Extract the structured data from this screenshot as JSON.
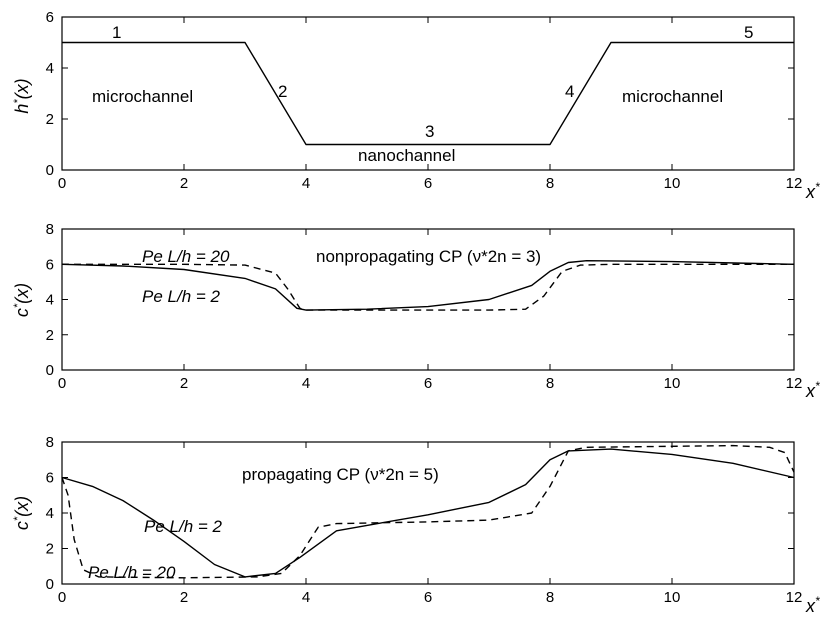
{
  "chart_data": [
    {
      "type": "line",
      "title": "",
      "xlabel": "x*",
      "ylabel": "h*(x)",
      "xlim": [
        0,
        12
      ],
      "ylim": [
        0,
        6
      ],
      "xticks": [
        0,
        2,
        4,
        6,
        8,
        10,
        12
      ],
      "yticks": [
        0,
        2,
        4,
        6
      ],
      "grid": false,
      "annotations": {
        "seg1": "1",
        "seg2": "2",
        "seg3": "3",
        "seg4": "4",
        "seg5": "5",
        "micro_left": "microchannel",
        "micro_right": "microchannel",
        "nano": "nanochannel"
      },
      "series": [
        {
          "name": "",
          "style": "solid",
          "points": [
            [
              0,
              5
            ],
            [
              3,
              5
            ],
            [
              4,
              1
            ],
            [
              8,
              1
            ],
            [
              9,
              5
            ],
            [
              12,
              5
            ]
          ]
        }
      ]
    },
    {
      "type": "line",
      "title": "",
      "xlabel": "x*",
      "ylabel": "c*(x)",
      "xlim": [
        0,
        12
      ],
      "ylim": [
        0,
        8
      ],
      "xticks": [
        0,
        2,
        4,
        6,
        8,
        10,
        12
      ],
      "yticks": [
        0,
        2,
        4,
        6,
        8
      ],
      "grid": false,
      "annotations": {
        "regime": "nonpropagating CP (ν*2n = 3)",
        "pe_high": "Pe L/h = 20",
        "pe_low": "Pe L/h = 2"
      },
      "series": [
        {
          "name": "Pe L/h = 2",
          "style": "solid",
          "points": [
            [
              0,
              6
            ],
            [
              1,
              5.9
            ],
            [
              2,
              5.7
            ],
            [
              3,
              5.2
            ],
            [
              3.5,
              4.6
            ],
            [
              3.85,
              3.5
            ],
            [
              4,
              3.4
            ],
            [
              5,
              3.45
            ],
            [
              6,
              3.6
            ],
            [
              7,
              4.0
            ],
            [
              7.7,
              4.8
            ],
            [
              8,
              5.6
            ],
            [
              8.3,
              6.1
            ],
            [
              8.6,
              6.2
            ],
            [
              10,
              6.15
            ],
            [
              12,
              6.0
            ]
          ]
        },
        {
          "name": "Pe L/h = 20",
          "style": "dashed",
          "points": [
            [
              0,
              6
            ],
            [
              2,
              6
            ],
            [
              3,
              5.95
            ],
            [
              3.5,
              5.5
            ],
            [
              3.7,
              4.6
            ],
            [
              3.9,
              3.5
            ],
            [
              4,
              3.4
            ],
            [
              7,
              3.4
            ],
            [
              7.6,
              3.45
            ],
            [
              7.9,
              4.2
            ],
            [
              8.2,
              5.6
            ],
            [
              8.5,
              5.95
            ],
            [
              9,
              6.0
            ],
            [
              12,
              6.0
            ]
          ]
        }
      ]
    },
    {
      "type": "line",
      "title": "",
      "xlabel": "x*",
      "ylabel": "c*(x)",
      "xlim": [
        0,
        12
      ],
      "ylim": [
        0,
        8
      ],
      "xticks": [
        0,
        2,
        4,
        6,
        8,
        10,
        12
      ],
      "yticks": [
        0,
        2,
        4,
        6,
        8
      ],
      "grid": false,
      "annotations": {
        "regime": "propagating CP (ν*2n = 5)",
        "pe_low": "Pe L/h = 2",
        "pe_high": "Pe L/h = 20"
      },
      "series": [
        {
          "name": "Pe L/h = 2",
          "style": "solid",
          "points": [
            [
              0,
              6
            ],
            [
              0.5,
              5.5
            ],
            [
              1,
              4.7
            ],
            [
              1.5,
              3.6
            ],
            [
              2,
              2.4
            ],
            [
              2.5,
              1.1
            ],
            [
              3,
              0.4
            ],
            [
              3.5,
              0.6
            ],
            [
              3.9,
              1.5
            ],
            [
              4.5,
              3.0
            ],
            [
              5,
              3.3
            ],
            [
              6,
              3.9
            ],
            [
              7,
              4.6
            ],
            [
              7.6,
              5.6
            ],
            [
              8,
              7.0
            ],
            [
              8.3,
              7.5
            ],
            [
              9,
              7.6
            ],
            [
              10,
              7.3
            ],
            [
              11,
              6.8
            ],
            [
              12,
              6.0
            ]
          ]
        },
        {
          "name": "Pe L/h = 20",
          "style": "dashed",
          "points": [
            [
              0,
              6
            ],
            [
              0.1,
              5.0
            ],
            [
              0.2,
              2.5
            ],
            [
              0.35,
              0.8
            ],
            [
              0.6,
              0.4
            ],
            [
              2,
              0.35
            ],
            [
              3.2,
              0.4
            ],
            [
              3.6,
              0.6
            ],
            [
              3.9,
              1.6
            ],
            [
              4.2,
              3.2
            ],
            [
              4.5,
              3.4
            ],
            [
              6,
              3.5
            ],
            [
              7,
              3.6
            ],
            [
              7.7,
              4.0
            ],
            [
              8,
              5.5
            ],
            [
              8.3,
              7.5
            ],
            [
              8.6,
              7.7
            ],
            [
              11,
              7.8
            ],
            [
              11.6,
              7.7
            ],
            [
              11.85,
              7.4
            ],
            [
              12,
              6.3
            ]
          ]
        }
      ]
    }
  ]
}
